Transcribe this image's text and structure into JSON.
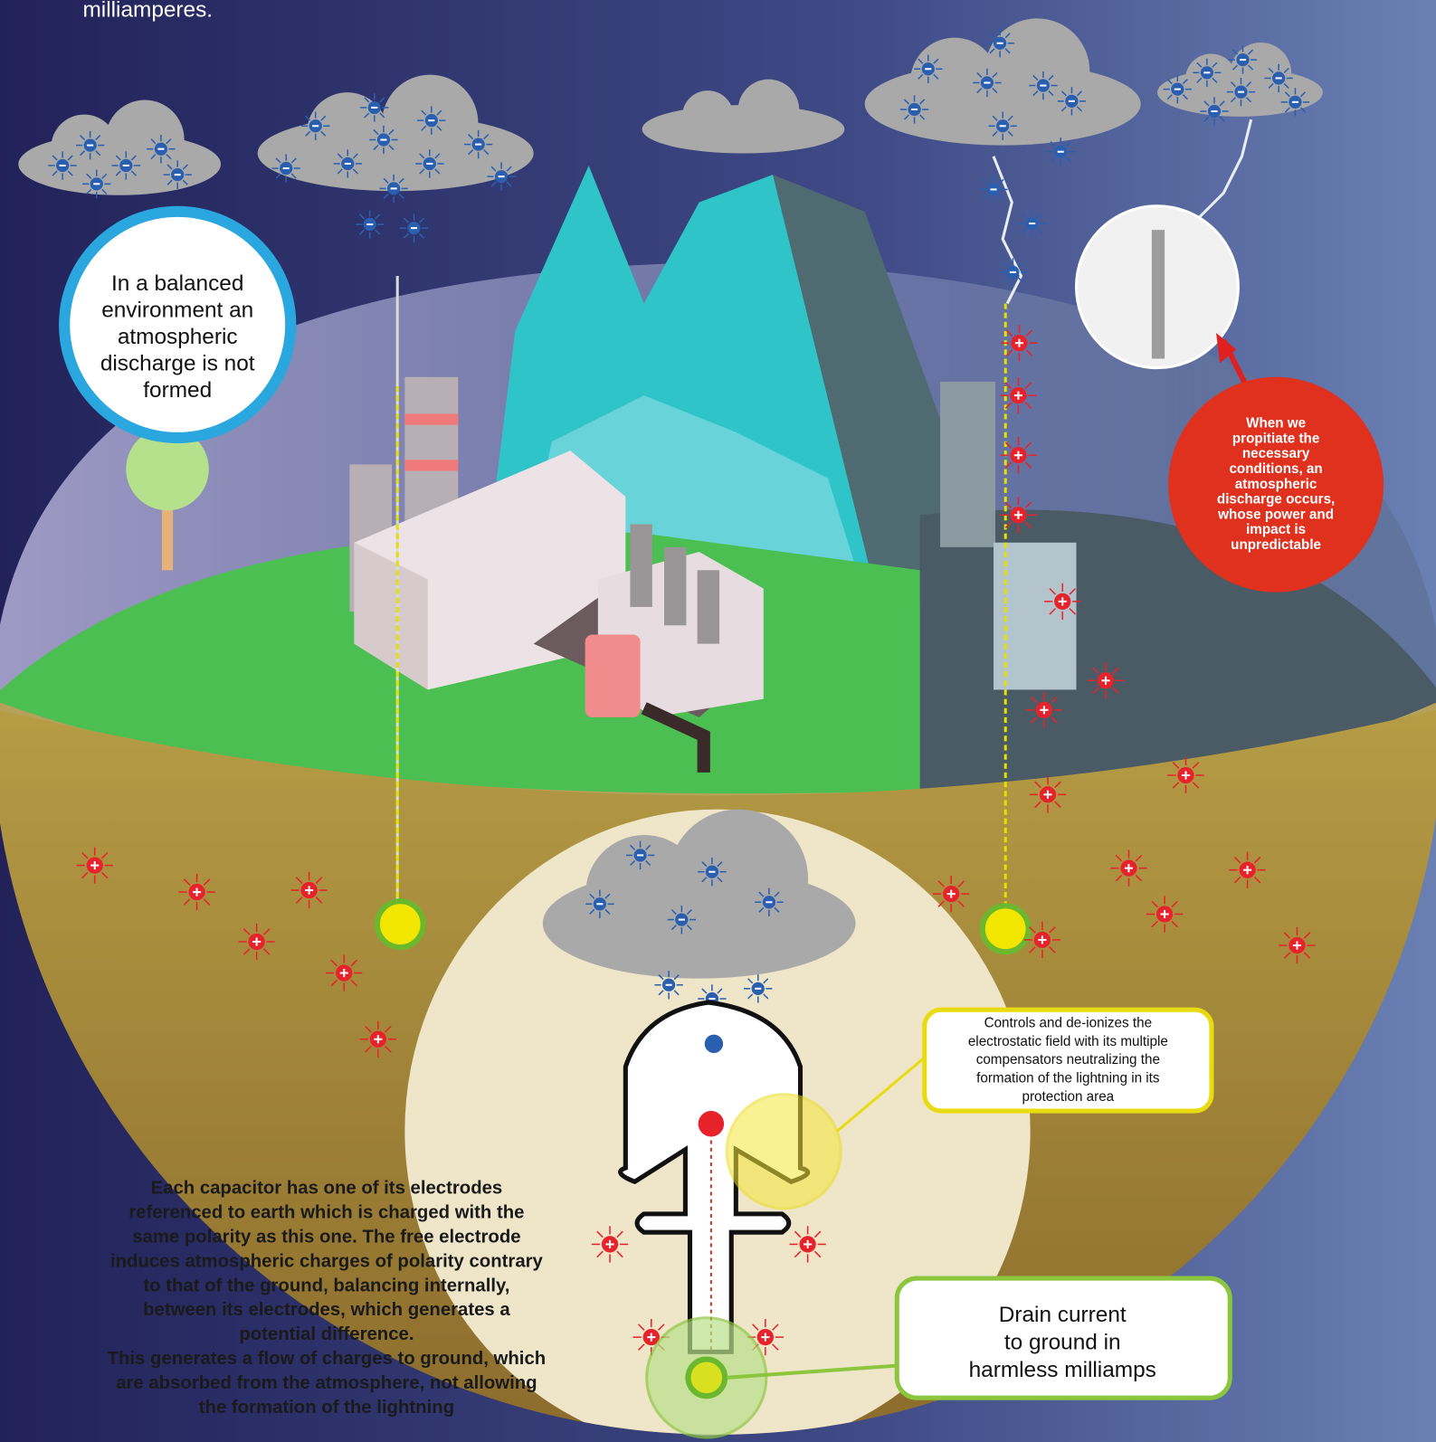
{
  "header": {
    "text": "milliamperes."
  },
  "balanced_callout": {
    "lines": [
      "In a balanced",
      "environment an",
      "atmospheric",
      "discharge is not",
      "formed"
    ]
  },
  "discharge_callout": {
    "lines": [
      "When we",
      "propitiate the",
      "necessary",
      "conditions, an",
      "atmospheric",
      "discharge occurs,",
      "whose power and",
      "impact is",
      "unpredictable"
    ]
  },
  "control_callout": {
    "lines": [
      "Controls and de-ionizes the",
      "electrostatic field with its  multiple",
      "compensators neutralizing the",
      "formation of the lightning in its",
      "protection area"
    ]
  },
  "capacitor_text": {
    "lines": [
      "Each capacitor has one of its electrodes",
      "referenced to earth which is charged with the",
      "same polarity as this one. The free electrode",
      "induces atmospheric charges of polarity contrary",
      "to that of the ground, balancing internally,",
      "between its electrodes, which generates a",
      "potential difference.",
      "This generates a flow of charges to ground, which",
      "are absorbed from the atmosphere, not allowing",
      "the formation of the lightning"
    ]
  },
  "drain_callout": {
    "lines": [
      "Drain current",
      "to ground in",
      "harmless milliamps"
    ]
  }
}
